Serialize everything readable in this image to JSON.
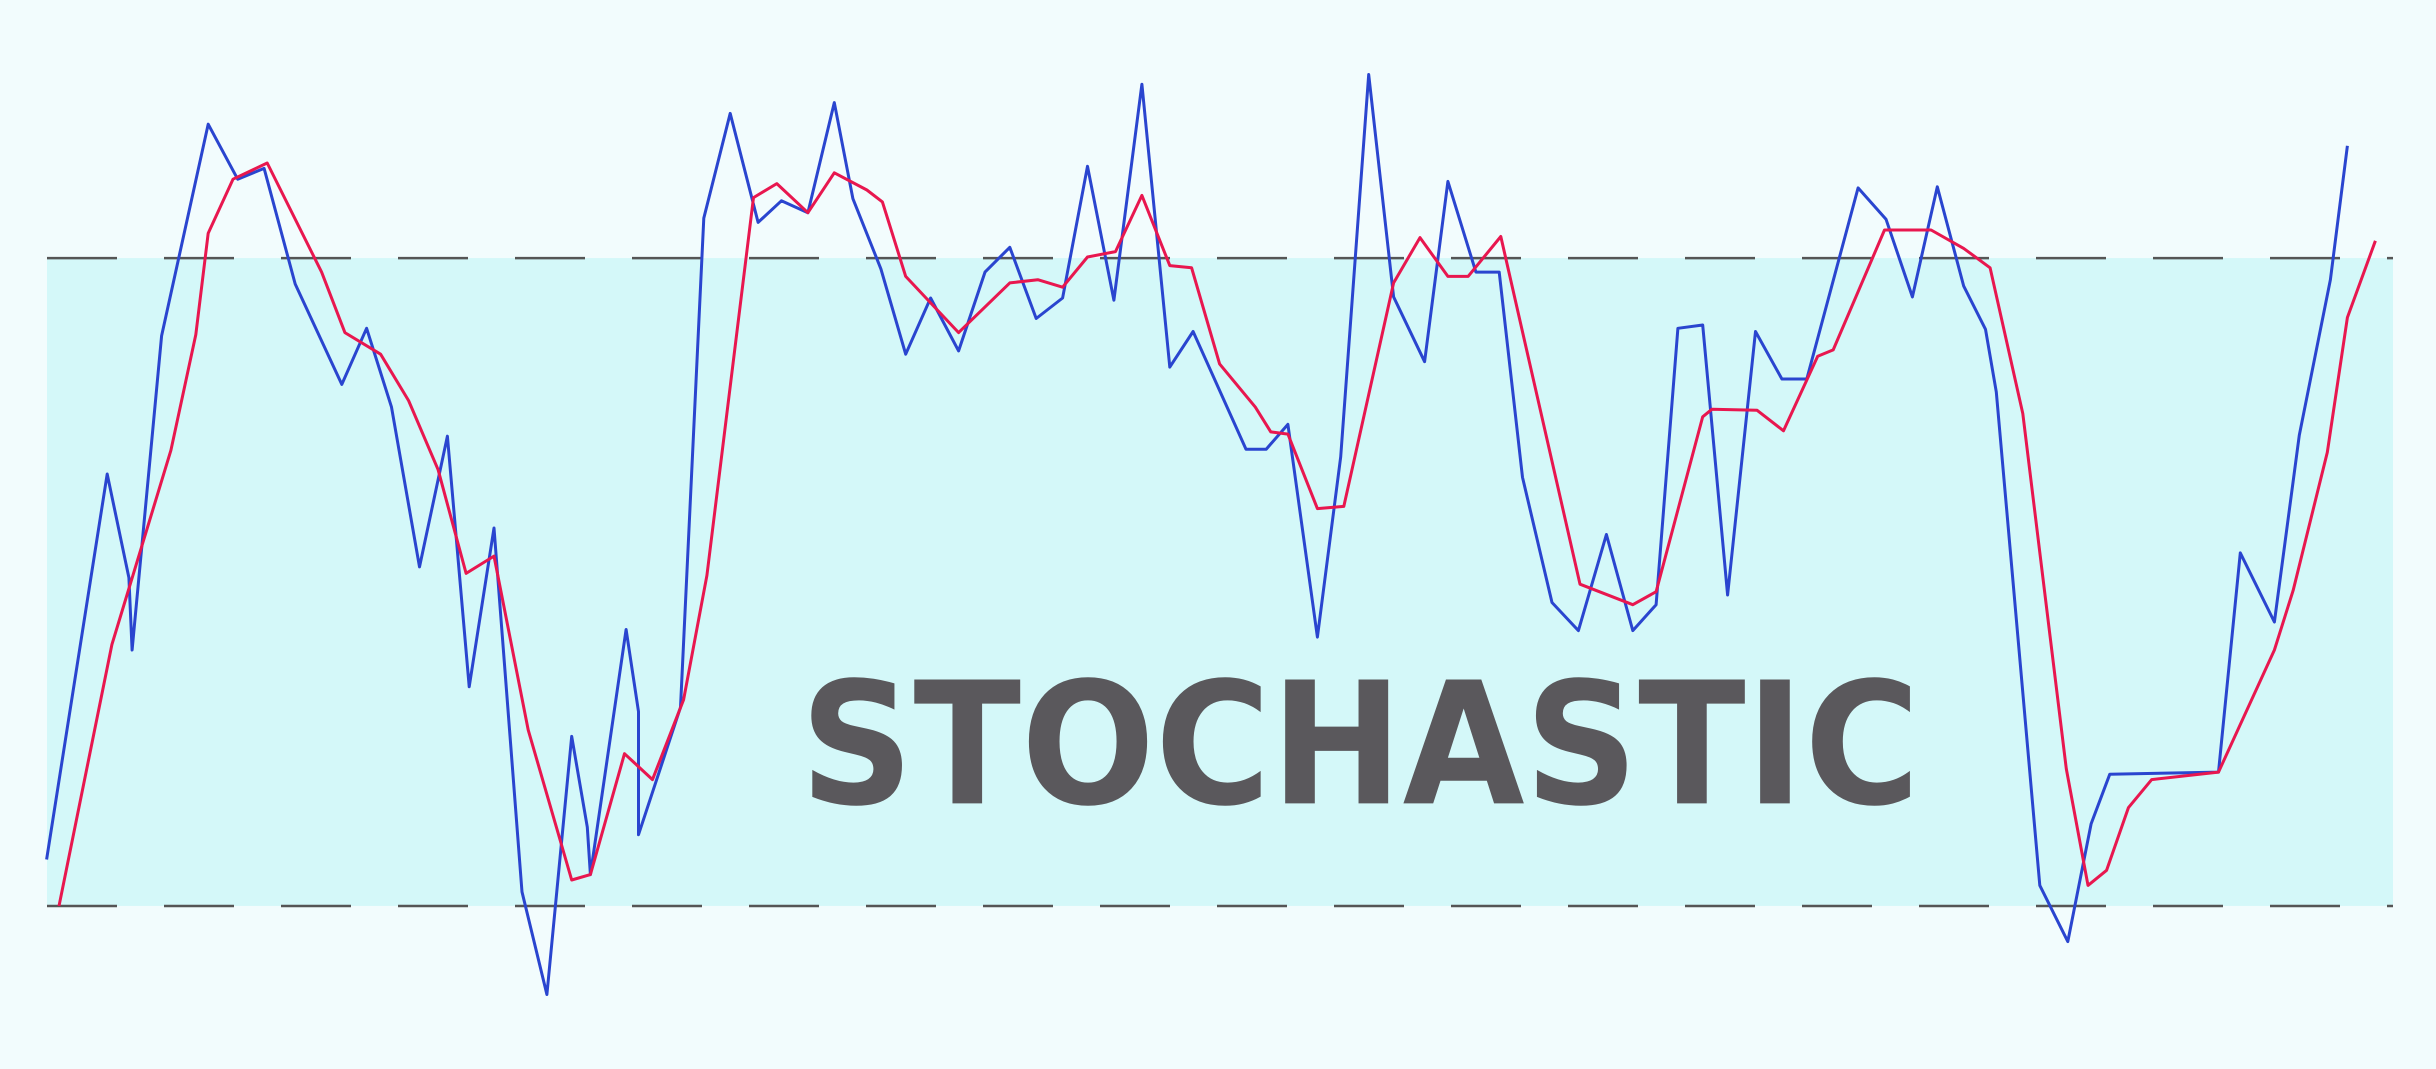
{
  "chart_data": {
    "type": "line",
    "title": "STOCHASTIC",
    "xlim": [
      0,
      1568
    ],
    "ylim": [
      4.9,
      103.9
    ],
    "bands": [
      20,
      80
    ],
    "band_color": "#d4f8f9",
    "series": [
      {
        "color": "#2a45cf",
        "x": [
          30,
          69,
          83,
          85,
          104,
          134,
          153,
          170,
          190,
          220,
          236,
          252,
          270,
          288,
          302,
          318,
          336,
          352,
          368,
          378,
          380,
          403,
          411,
          411,
          438,
          453,
          470,
          488,
          503,
          520,
          537,
          549,
          567,
          583,
          599,
          617,
          634,
          650,
          667,
          684,
          700,
          717,
          735,
          753,
          768,
          802,
          815,
          829,
          848,
          863,
          881,
          897,
          917,
          932,
          950,
          965,
          980,
          999,
          1016,
          1034,
          1051,
          1066,
          1080,
          1096,
          1112,
          1130,
          1147,
          1163,
          1196,
          1214,
          1231,
          1247,
          1264,
          1278,
          1285,
          1313,
          1331,
          1346,
          1358,
          1428,
          1442,
          1464,
          1480,
          1500,
          1511
        ],
        "values": [
          24.3,
          60.0,
          50.4,
          43.7,
          72.8,
          92.4,
          87.3,
          88.3,
          77.6,
          68.3,
          73.5,
          66.2,
          51.4,
          63.5,
          40.3,
          55.0,
          21.3,
          11.8,
          35.7,
          27.3,
          22.9,
          45.6,
          38.0,
          26.6,
          38.4,
          83.7,
          93.4,
          83.3,
          85.3,
          84.2,
          94.4,
          85.5,
          79.0,
          71.1,
          76.3,
          71.4,
          78.7,
          81.0,
          74.4,
          76.3,
          88.5,
          76.1,
          96.1,
          69.9,
          73.2,
          62.3,
          62.3,
          64.6,
          44.9,
          61.6,
          97.0,
          76.4,
          70.4,
          87.1,
          78.7,
          78.7,
          59.7,
          48.1,
          45.5,
          54.4,
          45.5,
          47.9,
          73.5,
          73.8,
          48.8,
          73.2,
          68.8,
          68.8,
          86.5,
          83.6,
          76.4,
          86.6,
          77.4,
          73.4,
          67.6,
          21.9,
          16.7,
          27.6,
          32.2,
          32.4,
          52.7,
          46.3,
          63.6,
          78.0,
          90.4
        ]
      },
      {
        "color": "#e8174f",
        "x": [
          38,
          72,
          110,
          126,
          134,
          150,
          172,
          207,
          222,
          245,
          263,
          282,
          300,
          318,
          340,
          368,
          380,
          402,
          420,
          440,
          455,
          485,
          500,
          520,
          537,
          558,
          568,
          583,
          617,
          650,
          668,
          684,
          700,
          718,
          735,
          753,
          767,
          785,
          808,
          818,
          829,
          848,
          865,
          897,
          914,
          932,
          945,
          966,
          1017,
          1051,
          1066,
          1096,
          1102,
          1131,
          1148,
          1170,
          1180,
          1213,
          1243,
          1264,
          1281,
          1302,
          1330,
          1344,
          1356,
          1370,
          1385,
          1428,
          1464,
          1476,
          1498,
          1511,
          1529
        ],
        "values": [
          20.0,
          44.2,
          62.2,
          72.9,
          82.3,
          87.3,
          88.8,
          78.7,
          73.1,
          71.1,
          66.8,
          60.4,
          50.8,
          52.4,
          36.3,
          22.4,
          22.9,
          34.1,
          31.7,
          39.1,
          50.6,
          85.6,
          86.9,
          84.2,
          87.9,
          86.3,
          85.2,
          78.3,
          73.1,
          77.7,
          78.0,
          77.3,
          80.1,
          80.6,
          85.8,
          79.3,
          79.1,
          70.2,
          66.2,
          63.9,
          63.7,
          56.8,
          57.0,
          77.7,
          81.9,
          78.3,
          78.3,
          82.0,
          49.8,
          47.9,
          49.1,
          65.3,
          66.0,
          65.9,
          64.0,
          70.9,
          71.5,
          82.6,
          82.6,
          80.9,
          79.1,
          65.6,
          32.7,
          21.9,
          23.3,
          29.1,
          31.7,
          32.4,
          43.7,
          49.2,
          62.0,
          74.5,
          81.6
        ]
      }
    ]
  }
}
